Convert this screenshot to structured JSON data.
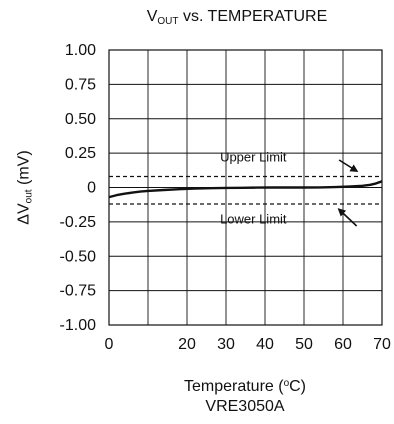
{
  "chart_data": {
    "type": "line",
    "title": {
      "main": "V",
      "sub": "OUT",
      "rest": " vs. TEMPERATURE"
    },
    "xlabel": {
      "pre": "Temperature (",
      "sup": "o",
      "post": "C)"
    },
    "ylabel": {
      "pre": "ΔV",
      "sub": "out",
      "post": " (mV)"
    },
    "caption": "VRE3050A",
    "xlim": [
      0,
      70
    ],
    "ylim": [
      -1.0,
      1.0
    ],
    "x_ticks": [
      0,
      10,
      20,
      30,
      40,
      50,
      60,
      70
    ],
    "x_tick_labels": [
      "0",
      "",
      "20",
      "30",
      "40",
      "50",
      "60",
      "70"
    ],
    "y_ticks": [
      1.0,
      0.75,
      0.5,
      0.25,
      0,
      -0.25,
      -0.5,
      -0.75,
      -1.0
    ],
    "y_tick_labels": [
      "1.00",
      "0.75",
      "0.50",
      "0.25",
      "0",
      "-0.25",
      "-0.50",
      "-0.75",
      "-1.00"
    ],
    "grid": true,
    "series": [
      {
        "x": [
          0,
          2,
          4,
          6,
          8,
          10,
          14,
          18,
          22,
          26,
          30,
          34,
          38,
          42,
          46,
          50,
          54,
          58,
          62,
          65,
          67,
          68.5,
          70
        ],
        "y": [
          -0.07,
          -0.055,
          -0.045,
          -0.037,
          -0.03,
          -0.025,
          -0.018,
          -0.012,
          -0.008,
          -0.005,
          -0.003,
          -0.002,
          -0.001,
          0,
          0,
          0,
          0.001,
          0.003,
          0.007,
          0.012,
          0.02,
          0.03,
          0.045
        ]
      }
    ],
    "limits": [
      {
        "label": "Upper Limit",
        "y": 0.08
      },
      {
        "label": "Lower Limit",
        "y": -0.12
      }
    ],
    "annotations": [
      {
        "text": "Upper   Limit",
        "x": 37,
        "y": 0.19
      },
      {
        "text": "Lower   Limit",
        "x": 37,
        "y": -0.26
      }
    ],
    "arrows": [
      {
        "from": [
          59,
          0.2
        ],
        "to": [
          63.5,
          0.12
        ]
      },
      {
        "from": [
          63.5,
          -0.28
        ],
        "to": [
          59,
          -0.16
        ]
      }
    ]
  }
}
